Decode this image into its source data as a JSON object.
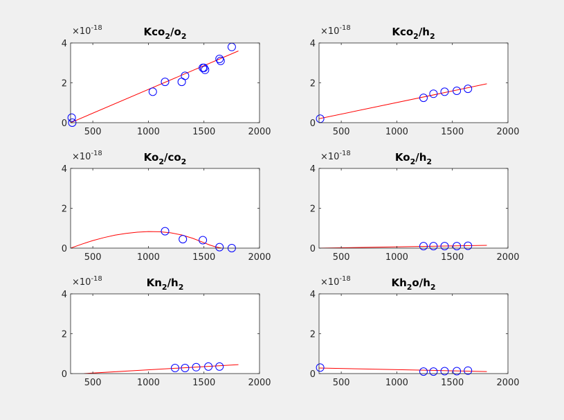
{
  "figure": {
    "background": "#f0f0f0",
    "axes_background": "#ffffff"
  },
  "colors": {
    "marker": "#0000ff",
    "fit_line": "#ff0000",
    "axis": "#262626"
  },
  "chart_data": [
    {
      "type": "scatter",
      "title": {
        "base": "Kco",
        "parts": [
          {
            "t": "Kco",
            "s": false
          },
          {
            "t": "2",
            "s": true
          },
          {
            "t": "/o",
            "s": false
          },
          {
            "t": "2",
            "s": true
          }
        ]
      },
      "multiplier": {
        "base": "×10",
        "exp": "-18"
      },
      "xlim": [
        300,
        2000
      ],
      "ylim": [
        0,
        4
      ],
      "xticks": [
        500,
        1000,
        1500,
        2000
      ],
      "yticks": [
        0,
        2,
        4
      ],
      "grid": false,
      "series": [
        {
          "mode": "markers",
          "marker": "circle",
          "x": [
            310,
            315,
            1040,
            1150,
            1300,
            1330,
            1490,
            1500,
            1510,
            1640,
            1650,
            1750
          ],
          "y": [
            0.25,
            0.0,
            1.55,
            2.05,
            2.05,
            2.35,
            2.75,
            2.75,
            2.65,
            3.2,
            3.1,
            3.8
          ]
        },
        {
          "mode": "line",
          "x": [
            300,
            1810
          ],
          "y": [
            0.0,
            3.6
          ]
        }
      ]
    },
    {
      "type": "scatter",
      "title": {
        "parts": [
          {
            "t": "Kco",
            "s": false
          },
          {
            "t": "2",
            "s": true
          },
          {
            "t": "/h",
            "s": false
          },
          {
            "t": "2",
            "s": true
          }
        ]
      },
      "multiplier": {
        "base": "×10",
        "exp": "-18"
      },
      "xlim": [
        300,
        2000
      ],
      "ylim": [
        0,
        4
      ],
      "xticks": [
        500,
        1000,
        1500,
        2000
      ],
      "yticks": [
        0,
        2,
        4
      ],
      "grid": false,
      "series": [
        {
          "mode": "markers",
          "marker": "circle",
          "x": [
            310,
            1240,
            1330,
            1430,
            1540,
            1640
          ],
          "y": [
            0.2,
            1.25,
            1.45,
            1.55,
            1.6,
            1.7
          ]
        },
        {
          "mode": "line",
          "x": [
            300,
            1810
          ],
          "y": [
            0.2,
            1.95
          ]
        }
      ]
    },
    {
      "type": "scatter",
      "title": {
        "parts": [
          {
            "t": "Ko",
            "s": false
          },
          {
            "t": "2",
            "s": true
          },
          {
            "t": "/co",
            "s": false
          },
          {
            "t": "2",
            "s": true
          }
        ]
      },
      "multiplier": {
        "base": "×10",
        "exp": "-18"
      },
      "xlim": [
        300,
        2000
      ],
      "ylim": [
        0,
        4
      ],
      "xticks": [
        500,
        1000,
        1500,
        2000
      ],
      "yticks": [
        0,
        2,
        4
      ],
      "grid": false,
      "series": [
        {
          "mode": "markers",
          "marker": "circle",
          "x": [
            1150,
            1310,
            1490,
            1640,
            1750
          ],
          "y": [
            0.85,
            0.45,
            0.4,
            0.05,
            0.0
          ]
        },
        {
          "mode": "line",
          "x": [
            300,
            400,
            500,
            600,
            700,
            800,
            900,
            1000,
            1100,
            1200,
            1300,
            1400,
            1500,
            1550,
            1600,
            1640,
            1660
          ],
          "y": [
            0.0,
            0.2,
            0.38,
            0.53,
            0.65,
            0.74,
            0.8,
            0.83,
            0.82,
            0.77,
            0.66,
            0.49,
            0.27,
            0.16,
            0.07,
            0.02,
            0.0
          ]
        }
      ]
    },
    {
      "type": "scatter",
      "title": {
        "parts": [
          {
            "t": "Ko",
            "s": false
          },
          {
            "t": "2",
            "s": true
          },
          {
            "t": "/h",
            "s": false
          },
          {
            "t": "2",
            "s": true
          }
        ]
      },
      "multiplier": {
        "base": "×10",
        "exp": "-18"
      },
      "xlim": [
        300,
        2000
      ],
      "ylim": [
        0,
        4
      ],
      "xticks": [
        500,
        1000,
        1500,
        2000
      ],
      "yticks": [
        0,
        2,
        4
      ],
      "grid": false,
      "series": [
        {
          "mode": "markers",
          "marker": "circle",
          "x": [
            1240,
            1330,
            1430,
            1540,
            1640
          ],
          "y": [
            0.1,
            0.1,
            0.1,
            0.1,
            0.12
          ]
        },
        {
          "mode": "line",
          "x": [
            300,
            1810
          ],
          "y": [
            0.0,
            0.14
          ]
        }
      ]
    },
    {
      "type": "scatter",
      "title": {
        "parts": [
          {
            "t": "Kn",
            "s": false
          },
          {
            "t": "2",
            "s": true
          },
          {
            "t": "/h",
            "s": false
          },
          {
            "t": "2",
            "s": true
          }
        ]
      },
      "multiplier": {
        "base": "×10",
        "exp": "-18"
      },
      "xlim": [
        300,
        2000
      ],
      "ylim": [
        0,
        4
      ],
      "xticks": [
        500,
        1000,
        1500,
        2000
      ],
      "yticks": [
        0,
        2,
        4
      ],
      "grid": false,
      "series": [
        {
          "mode": "markers",
          "marker": "circle",
          "x": [
            1240,
            1330,
            1430,
            1540,
            1640
          ],
          "y": [
            0.28,
            0.28,
            0.32,
            0.35,
            0.35
          ]
        },
        {
          "mode": "line",
          "x": [
            420,
            1810
          ],
          "y": [
            0.0,
            0.45
          ]
        }
      ]
    },
    {
      "type": "scatter",
      "title": {
        "parts": [
          {
            "t": "Kh",
            "s": false
          },
          {
            "t": "2",
            "s": true
          },
          {
            "t": "o/h",
            "s": false
          },
          {
            "t": "2",
            "s": true
          }
        ]
      },
      "multiplier": {
        "base": "×10",
        "exp": "-18"
      },
      "xlim": [
        300,
        2000
      ],
      "ylim": [
        0,
        4
      ],
      "xticks": [
        500,
        1000,
        1500,
        2000
      ],
      "yticks": [
        0,
        2,
        4
      ],
      "grid": false,
      "series": [
        {
          "mode": "markers",
          "marker": "circle",
          "x": [
            310,
            1240,
            1330,
            1430,
            1540,
            1640
          ],
          "y": [
            0.3,
            0.1,
            0.1,
            0.12,
            0.12,
            0.15
          ]
        },
        {
          "mode": "line",
          "x": [
            300,
            1810
          ],
          "y": [
            0.28,
            0.1
          ]
        }
      ]
    }
  ]
}
